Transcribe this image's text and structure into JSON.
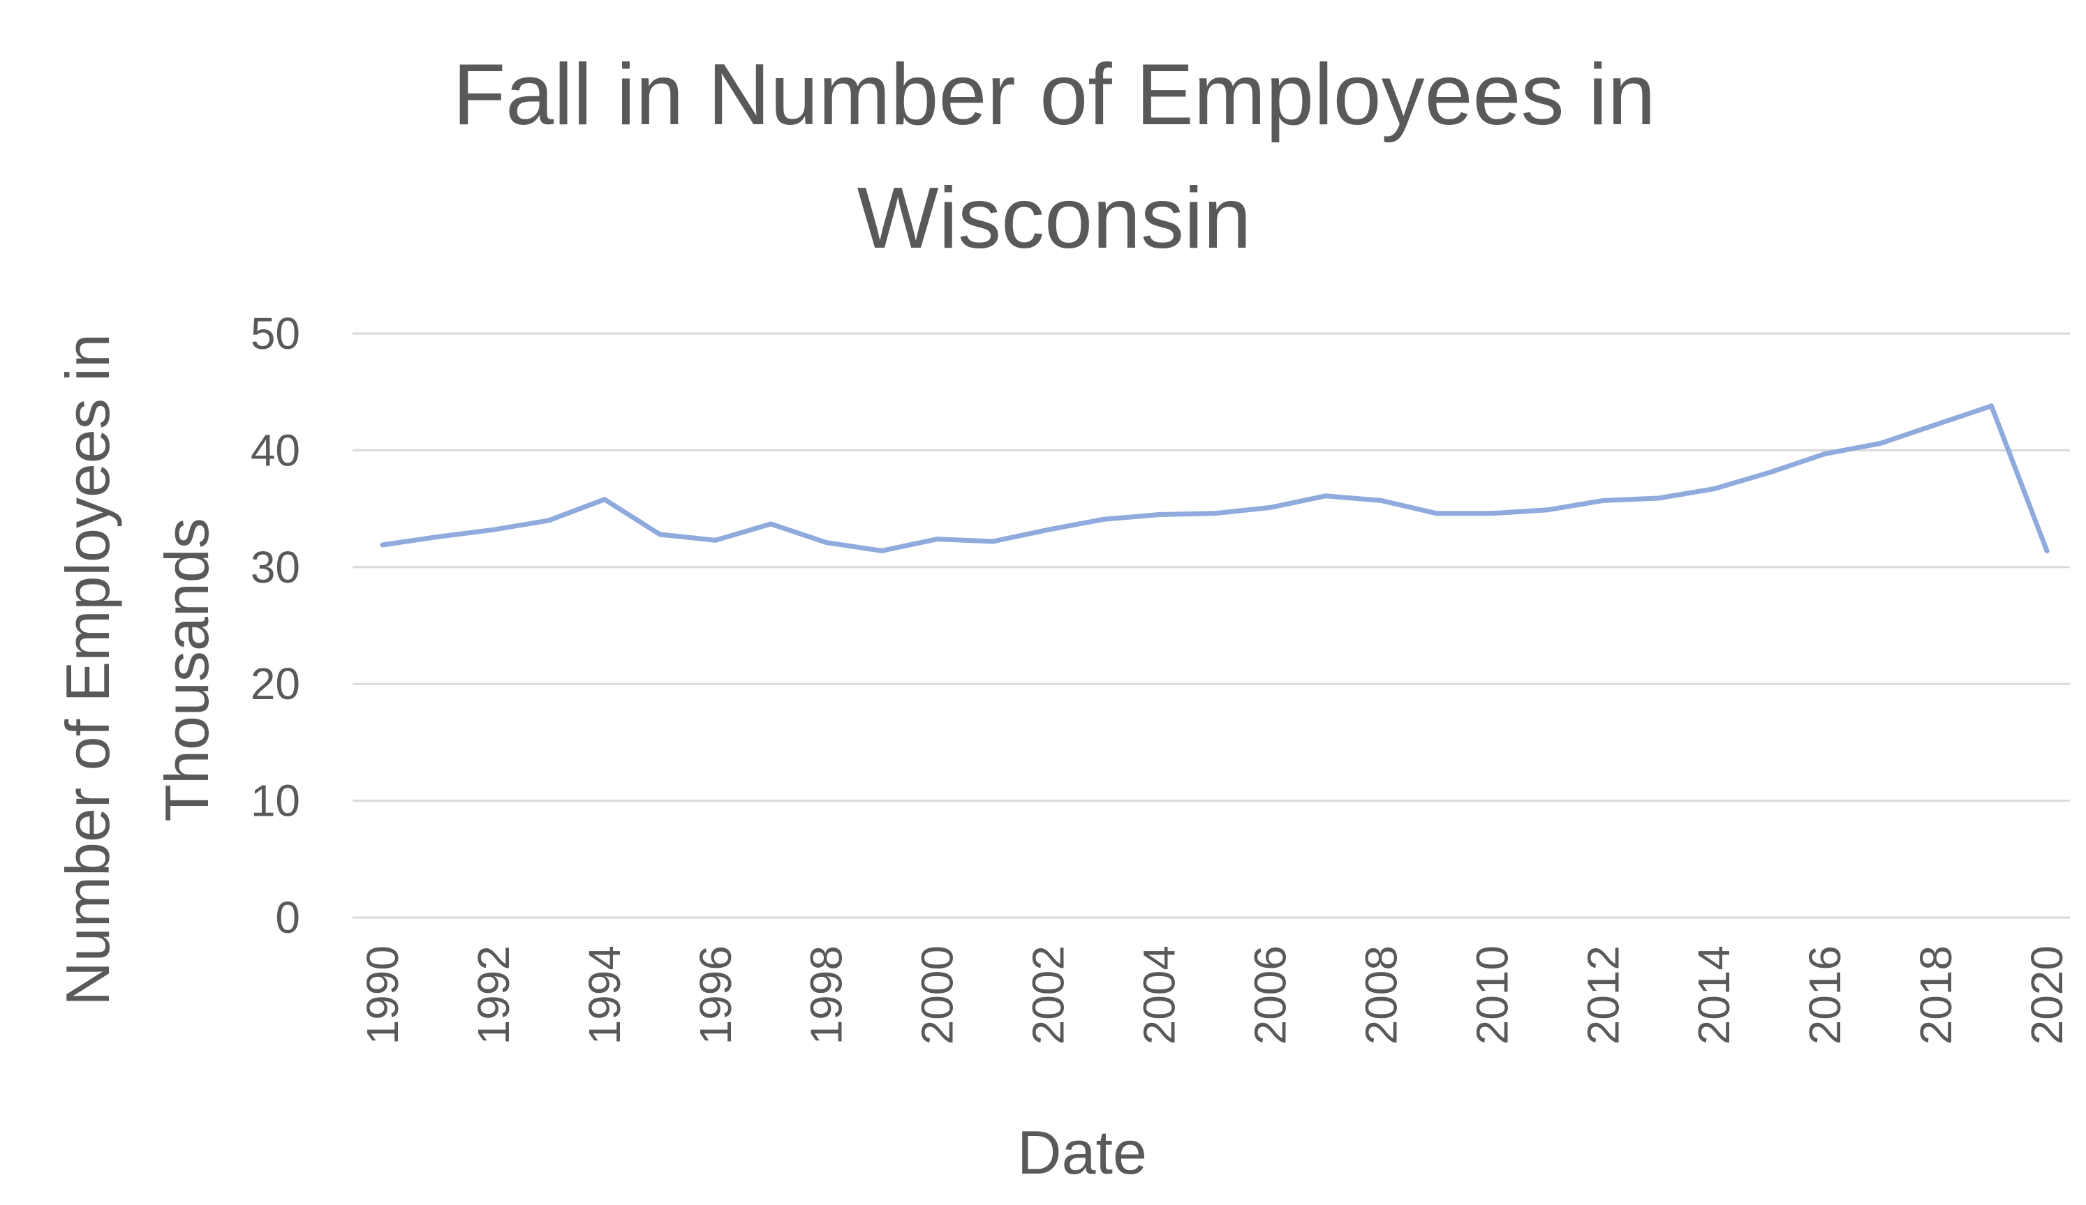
{
  "chart_data": {
    "type": "line",
    "title_lines": [
      "Fall in Number of Employees in",
      "Wisconsin"
    ],
    "xlabel": "Date",
    "ylabel_lines": [
      "Number of Employees in",
      "Thousands"
    ],
    "ylim": [
      0,
      50
    ],
    "yticks": [
      0,
      10,
      20,
      30,
      40,
      50
    ],
    "x_tick_labels": [
      "1990",
      "1992",
      "1994",
      "1996",
      "1998",
      "2000",
      "2002",
      "2004",
      "2006",
      "2008",
      "2010",
      "2012",
      "2014",
      "2016",
      "2018",
      "2020"
    ],
    "grid": true,
    "legend": "none",
    "x": [
      1990,
      1991,
      1992,
      1993,
      1994,
      1995,
      1996,
      1997,
      1998,
      1999,
      2000,
      2001,
      2002,
      2003,
      2004,
      2005,
      2006,
      2007,
      2008,
      2009,
      2010,
      2011,
      2012,
      2013,
      2014,
      2015,
      2016,
      2017,
      2018,
      2019,
      2020
    ],
    "series": [
      {
        "color": "#8faadc",
        "values": [
          31.9,
          32.6,
          33.2,
          34.0,
          35.8,
          32.8,
          32.3,
          33.7,
          32.1,
          31.4,
          32.4,
          32.2,
          33.2,
          34.1,
          34.5,
          34.6,
          35.1,
          36.1,
          35.7,
          34.6,
          34.6,
          34.9,
          35.7,
          35.9,
          36.7,
          38.1,
          39.7,
          40.6,
          42.2,
          43.8,
          31.4
        ]
      }
    ]
  }
}
